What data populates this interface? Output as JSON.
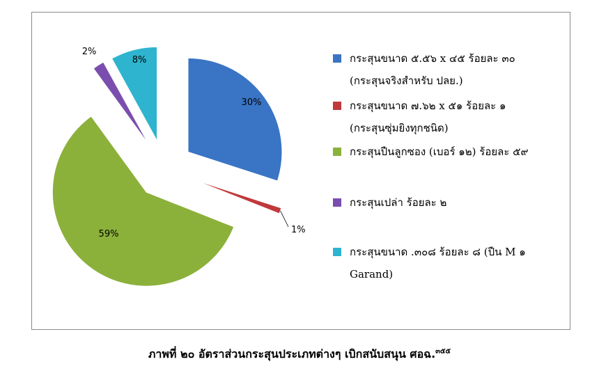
{
  "chart_data": {
    "type": "pie",
    "slices": [
      {
        "label": "30%",
        "value": 30,
        "color": "#3a74c4"
      },
      {
        "label": "1%",
        "value": 1,
        "color": "#c0393b"
      },
      {
        "label": "59%",
        "value": 59,
        "color": "#8bb13b"
      },
      {
        "label": "2%",
        "value": 2,
        "color": "#7a4eae"
      },
      {
        "label": "8%",
        "value": 8,
        "color": "#2eb4cf"
      }
    ],
    "legend": [
      {
        "line1": "กระสุนขนาด ๕.๕๖ x ๔๕ ร้อยละ ๓๐",
        "line2": "(กระสุนจริงสำหรับ ปลย.)",
        "color": "#3a74c4"
      },
      {
        "line1": "กระสุนขนาด ๗.๖๒ x ๕๑ ร้อยละ ๑",
        "line2": "(กระสุนซุ่มยิงทุกชนิด)",
        "color": "#c0393b"
      },
      {
        "line1": "กระสุนปืนลูกซอง (เบอร์ ๑๒) ร้อยละ ๕๙",
        "line2": "",
        "color": "#8bb13b"
      },
      {
        "line1": "กระสุนเปล่า ร้อยละ ๒",
        "line2": "",
        "color": "#7a4eae"
      },
      {
        "line1": "กระสุนขนาด .๓๐๘ ร้อยละ ๘ (ปืน M ๑",
        "line2": "Garand)",
        "color": "#2eb4cf"
      }
    ],
    "legend_position": "right",
    "exploded": true
  },
  "caption": {
    "text": "ภาพที่ ๒๐ อัตราส่วนกระสุนประเภทต่างๆ เบิกสนับสนุน ศอฉ.",
    "footnote": "๓๕๕"
  }
}
